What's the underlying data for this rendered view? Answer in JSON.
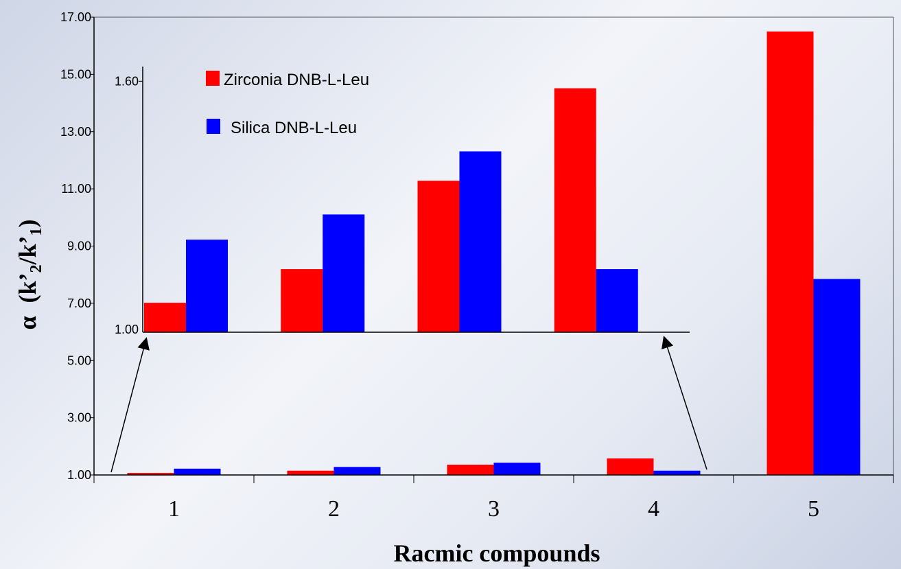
{
  "chart_data": {
    "type": "bar",
    "xlabel": "Racmic compounds",
    "ylabel": "α (k’2/k’1)",
    "ylabel_parts": {
      "alpha": "α",
      "open": "(k’",
      "sub1": "2",
      "mid": "/k’",
      "sub2": "1",
      "close": ")"
    },
    "categories": [
      "1",
      "2",
      "3",
      "4",
      "5"
    ],
    "ylim": [
      1.0,
      17.0
    ],
    "yticks": [
      "1.00",
      "3.00",
      "5.00",
      "7.00",
      "9.00",
      "11.00",
      "13.00",
      "15.00",
      "17.00"
    ],
    "series": [
      {
        "name": "Zirconia DNB-L-Leu",
        "color": "#ff0000",
        "values": [
          1.07,
          1.15,
          1.36,
          1.58,
          16.5
        ]
      },
      {
        "name": "Silica DNB-L-Leu",
        "color": "#0000ff",
        "values": [
          1.22,
          1.28,
          1.43,
          1.15,
          7.85
        ]
      }
    ],
    "inset": {
      "ylim": [
        1.0,
        1.6
      ],
      "yticks": [
        "1.00",
        "1.60"
      ],
      "categories": [
        "1",
        "2",
        "3",
        "4"
      ],
      "series": [
        {
          "name": "Zirconia DNB-L-Leu",
          "values": [
            1.07,
            1.15,
            1.36,
            1.58
          ]
        },
        {
          "name": "Silica DNB-L-Leu",
          "values": [
            1.22,
            1.28,
            1.43,
            1.15
          ]
        }
      ]
    },
    "legend": "top-left"
  }
}
